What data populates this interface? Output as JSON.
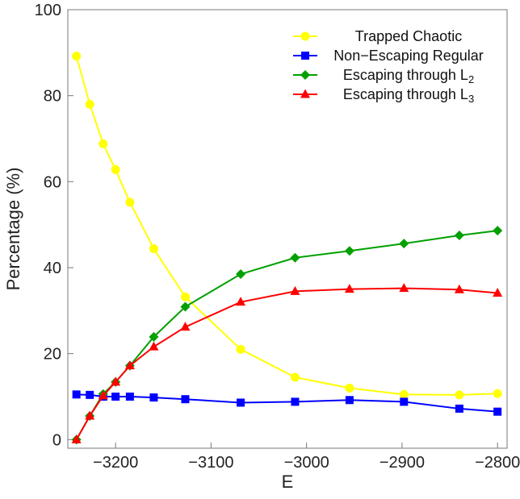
{
  "chart_data": {
    "type": "line",
    "xlabel": "E",
    "ylabel": "Percentage (%)",
    "xlim": [
      -3250,
      -2790
    ],
    "ylim": [
      -2,
      100
    ],
    "xticks": [
      -3200,
      -3100,
      -3000,
      -2900,
      -2800
    ],
    "yticks": [
      0,
      20,
      40,
      60,
      80,
      100
    ],
    "x_tick_labels": [
      "−3200",
      "−3100",
      "−3000",
      "−2900",
      "−2800"
    ],
    "y_tick_labels": [
      "0",
      "20",
      "40",
      "60",
      "80",
      "100"
    ],
    "legend_position": "top-right",
    "grid": false,
    "x": [
      -3241,
      -3227,
      -3213,
      -3200,
      -3185,
      -3160,
      -3127,
      -3069,
      -3012,
      -2955,
      -2898,
      -2840,
      -2800
    ],
    "series": [
      {
        "name": "Trapped Chaotic",
        "label_main": "Trapped Chaotic",
        "label_sub": "",
        "color": "#ffff00",
        "marker": "circle",
        "values": [
          89.2,
          78.0,
          68.8,
          62.8,
          55.2,
          44.4,
          33.2,
          21.0,
          14.5,
          12.0,
          10.5,
          10.4,
          10.7
        ]
      },
      {
        "name": "Non-Escaping Regular",
        "label_main": "Non−Escaping Regular",
        "label_sub": "",
        "color": "#0000ff",
        "marker": "square",
        "values": [
          10.5,
          10.4,
          10.0,
          10.0,
          10.0,
          9.8,
          9.4,
          8.6,
          8.8,
          9.2,
          8.8,
          7.2,
          6.5
        ]
      },
      {
        "name": "Escaping through L2",
        "label_main": "Escaping through L",
        "label_sub": "2",
        "color": "#00a000",
        "marker": "diamond",
        "values": [
          0,
          5.5,
          10.6,
          13.4,
          17.2,
          23.9,
          30.9,
          38.5,
          42.3,
          43.9,
          45.6,
          47.5,
          48.6
        ]
      },
      {
        "name": "Escaping through L3",
        "label_main": "Escaping through L",
        "label_sub": "3",
        "color": "#ff0000",
        "marker": "triangle",
        "values": [
          0,
          5.5,
          10.2,
          13.4,
          17.2,
          21.6,
          26.2,
          32.0,
          34.5,
          35.0,
          35.2,
          34.9,
          34.1
        ]
      }
    ]
  }
}
